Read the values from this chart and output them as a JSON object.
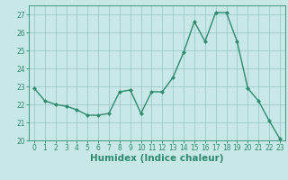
{
  "x": [
    0,
    1,
    2,
    3,
    4,
    5,
    6,
    7,
    8,
    9,
    10,
    11,
    12,
    13,
    14,
    15,
    16,
    17,
    18,
    19,
    20,
    21,
    22,
    23
  ],
  "y": [
    22.9,
    22.2,
    22.0,
    21.9,
    21.7,
    21.4,
    21.4,
    21.5,
    22.7,
    22.8,
    21.5,
    22.7,
    22.7,
    23.5,
    24.9,
    26.6,
    25.5,
    27.1,
    27.1,
    25.5,
    22.9,
    22.2,
    21.1,
    20.1
  ],
  "line_color": "#2e8b6e",
  "marker": "D",
  "markersize": 2.0,
  "linewidth": 1.0,
  "bg_color": "#c8e8e8",
  "grid_color": "#a0c8c8",
  "xlabel": "Humidex (Indice chaleur)",
  "ylim": [
    20,
    27.5
  ],
  "yticks": [
    20,
    21,
    22,
    23,
    24,
    25,
    26,
    27
  ],
  "xlim": [
    -0.5,
    23.5
  ],
  "xticks": [
    0,
    1,
    2,
    3,
    4,
    5,
    6,
    7,
    8,
    9,
    10,
    11,
    12,
    13,
    14,
    15,
    16,
    17,
    18,
    19,
    20,
    21,
    22,
    23
  ],
  "tick_fontsize": 5.5,
  "xlabel_fontsize": 7.5,
  "text_color": "#2e8b6e"
}
